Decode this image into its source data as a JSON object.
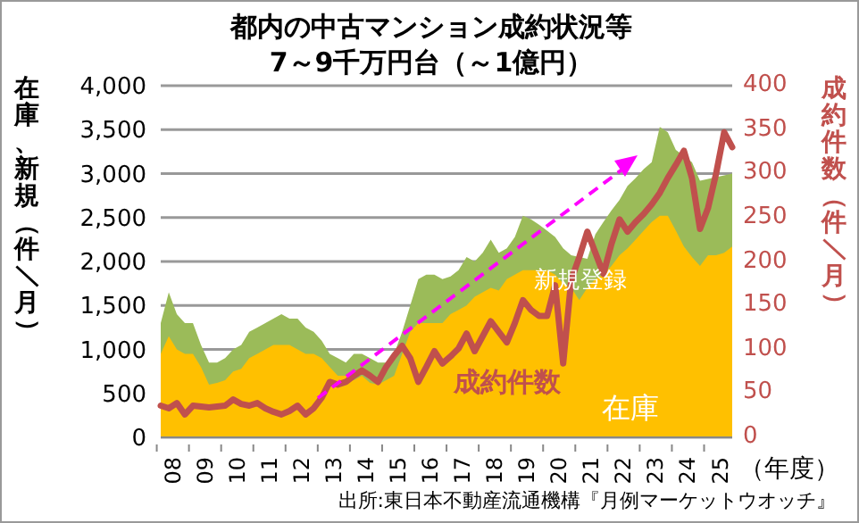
{
  "chart_data": {
    "type": "area",
    "title": "都内の中古マンション成約状況等",
    "subtitle": "7～9千万円台（～1億円）",
    "ylabel": "在庫、新規（件／月）",
    "y2label": "成約件数（件／月）",
    "xlabel": "（年度）",
    "annotations": [
      "出所:東日本不動産流通機構『月例マーケットウオッチ』"
    ],
    "categories": [
      null,
      null,
      "08",
      null,
      null,
      null,
      "09",
      null,
      null,
      null,
      "10",
      null,
      null,
      null,
      "11",
      null,
      null,
      null,
      "12",
      null,
      null,
      null,
      "13",
      null,
      null,
      null,
      "14",
      null,
      null,
      null,
      "15",
      null,
      null,
      null,
      "16",
      null,
      null,
      null,
      "17",
      null,
      null,
      null,
      "18",
      null,
      null,
      null,
      "19",
      null,
      null,
      null,
      "20",
      null,
      null,
      null,
      "21",
      null,
      null,
      null,
      "22",
      null,
      null,
      null,
      "23",
      null,
      null,
      null,
      "24",
      null,
      null,
      null,
      "25",
      null
    ],
    "series": [
      {
        "name": "新規登録",
        "type": "area",
        "color": "#9bbb59",
        "values": [
          1300,
          1650,
          1400,
          1300,
          1300,
          1050,
          850,
          850,
          900,
          1000,
          1050,
          1200,
          1250,
          1300,
          1350,
          1400,
          1350,
          1350,
          1250,
          1200,
          1100,
          950,
          900,
          850,
          950,
          950,
          900,
          850,
          850,
          950,
          1200,
          1500,
          1800,
          1850,
          1850,
          1800,
          1830,
          1900,
          2050,
          2000,
          2100,
          2250,
          2100,
          2150,
          2280,
          2520,
          2480,
          2420,
          2350,
          2280,
          2150,
          2070,
          2050,
          2030,
          2310,
          2450,
          2580,
          2700,
          2860,
          2950,
          3050,
          3130,
          3530,
          3470,
          3270,
          3200,
          3130,
          2920,
          2940,
          2960,
          2980,
          3000
        ]
      },
      {
        "name": "在庫",
        "type": "area",
        "color": "#ffc000",
        "values": [
          950,
          1150,
          1000,
          950,
          950,
          800,
          600,
          620,
          650,
          750,
          780,
          900,
          950,
          1000,
          1050,
          1050,
          1050,
          1000,
          950,
          950,
          900,
          800,
          700,
          700,
          650,
          700,
          620,
          600,
          650,
          700,
          950,
          1200,
          1300,
          1300,
          1300,
          1300,
          1400,
          1450,
          1500,
          1600,
          1650,
          1700,
          1670,
          1800,
          1850,
          1900,
          1900,
          1900,
          1900,
          1850,
          1750,
          1700,
          1560,
          1700,
          1800,
          1850,
          1950,
          2070,
          2150,
          2250,
          2350,
          2450,
          2520,
          2520,
          2350,
          2170,
          2050,
          1950,
          2070,
          2070,
          2100,
          2170
        ]
      },
      {
        "name": "成約件数",
        "type": "line",
        "axis": "y2",
        "color": "#c0504d",
        "values": [
          36,
          33,
          39,
          26,
          36,
          35,
          34,
          35,
          36,
          43,
          38,
          36,
          39,
          33,
          29,
          26,
          30,
          36,
          26,
          33,
          45,
          63,
          60,
          63,
          70,
          76,
          70,
          63,
          80,
          93,
          104,
          90,
          63,
          80,
          98,
          84,
          92,
          101,
          118,
          98,
          115,
          132,
          120,
          108,
          130,
          156,
          145,
          138,
          138,
          173,
          84,
          179,
          205,
          234,
          210,
          186,
          220,
          248,
          234,
          245,
          254,
          265,
          278,
          295,
          310,
          326,
          295,
          237,
          261,
          300,
          347,
          330
        ]
      }
    ],
    "ylim": [
      0,
      4000
    ],
    "yticks": [
      {
        "value": 0,
        "label": "0"
      },
      {
        "value": 500,
        "label": "500"
      },
      {
        "value": 1000,
        "label": "1,000"
      },
      {
        "value": 1500,
        "label": "1,500"
      },
      {
        "value": 2000,
        "label": "2,000"
      },
      {
        "value": 2500,
        "label": "2,500"
      },
      {
        "value": 3000,
        "label": "3,000"
      },
      {
        "value": 3500,
        "label": "3,500"
      },
      {
        "value": 4000,
        "label": "4,000"
      }
    ],
    "y2lim": [
      0,
      400
    ],
    "y2ticks": [
      0,
      50,
      100,
      150,
      200,
      250,
      300,
      350,
      400
    ],
    "grid": "y",
    "legend": false,
    "marker": "none",
    "line_style": "solid"
  }
}
